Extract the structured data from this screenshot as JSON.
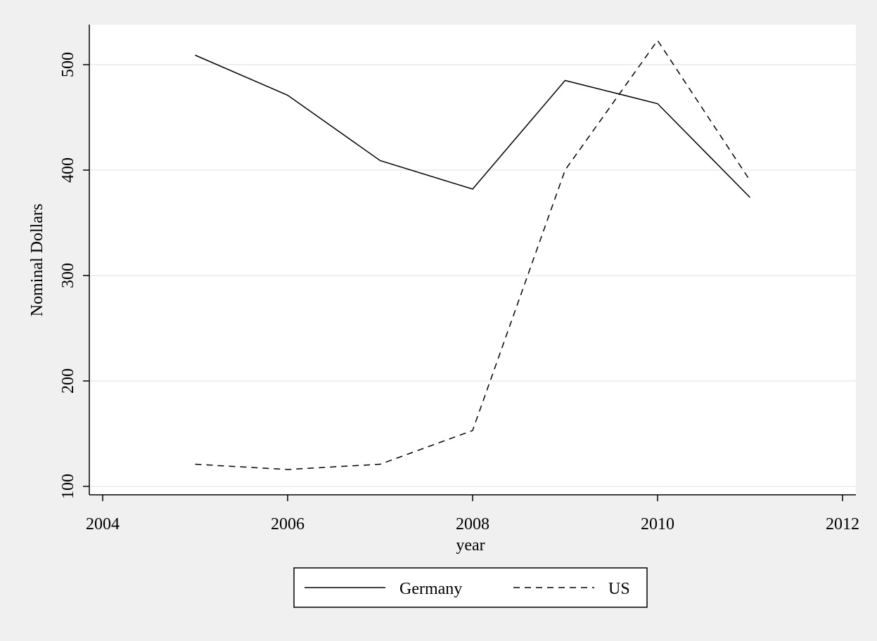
{
  "chart_data": {
    "type": "line",
    "x": [
      2005,
      2006,
      2007,
      2008,
      2009,
      2010,
      2011
    ],
    "series": [
      {
        "name": "Germany",
        "color": "#000000",
        "line_style": "solid",
        "values": [
          509,
          471,
          409,
          382,
          485,
          463,
          374
        ]
      },
      {
        "name": "US",
        "color": "#000000",
        "line_style": "dashed",
        "values": [
          121,
          116,
          121,
          153,
          400,
          523,
          390
        ]
      }
    ],
    "title": "",
    "xlabel": "year",
    "ylabel": "Nominal Dollars",
    "xlim": [
      2004,
      2012
    ],
    "ylim": [
      92,
      538
    ],
    "x_ticks": [
      2004,
      2006,
      2008,
      2010,
      2012
    ],
    "y_ticks": [
      100,
      200,
      300,
      400,
      500
    ],
    "x_tick_labels": [
      "2004",
      "2006",
      "2008",
      "2010",
      "2012"
    ],
    "y_tick_labels": [
      "100",
      "200",
      "300",
      "400",
      "500"
    ],
    "grid": "horizontal",
    "grid_color": "#eaeaea",
    "plot_background": "#ffffff",
    "outer_background": "#f0f0f0",
    "legend_position": "bottom-center"
  }
}
